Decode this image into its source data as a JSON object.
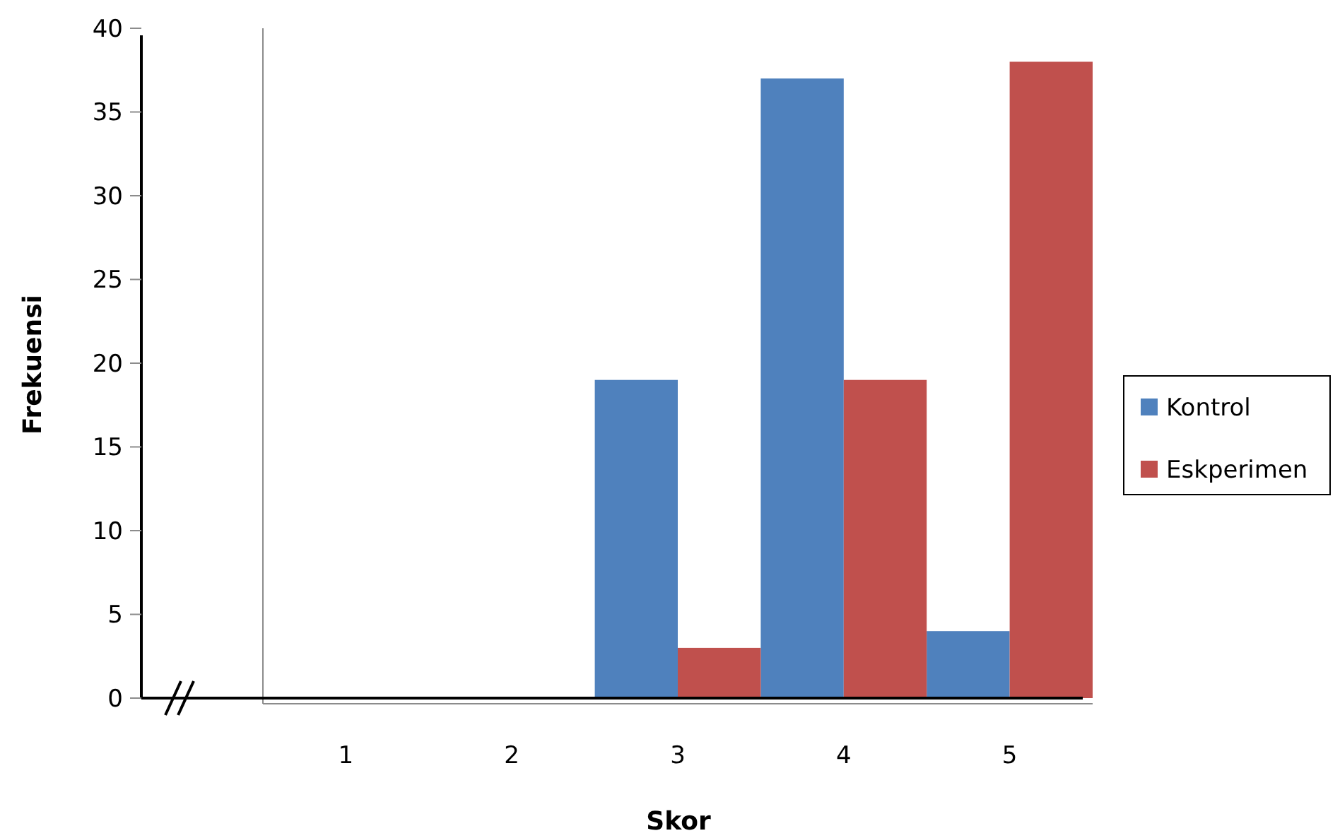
{
  "chart_data": {
    "type": "bar",
    "xlabel": "Skor",
    "ylabel": "Frekuensi",
    "categories": [
      "1",
      "2",
      "3",
      "4",
      "5"
    ],
    "series": [
      {
        "name": "Kontrol",
        "color": "#4f81bd",
        "values": [
          0,
          0,
          19,
          37,
          4
        ]
      },
      {
        "name": "Eskperimen",
        "color": "#c0504d",
        "values": [
          0,
          0,
          3,
          19,
          38
        ]
      }
    ],
    "ylim": [
      0,
      40
    ],
    "yticks": [
      0,
      5,
      10,
      15,
      20,
      25,
      30,
      35,
      40
    ],
    "grid": false,
    "legend": "right"
  }
}
